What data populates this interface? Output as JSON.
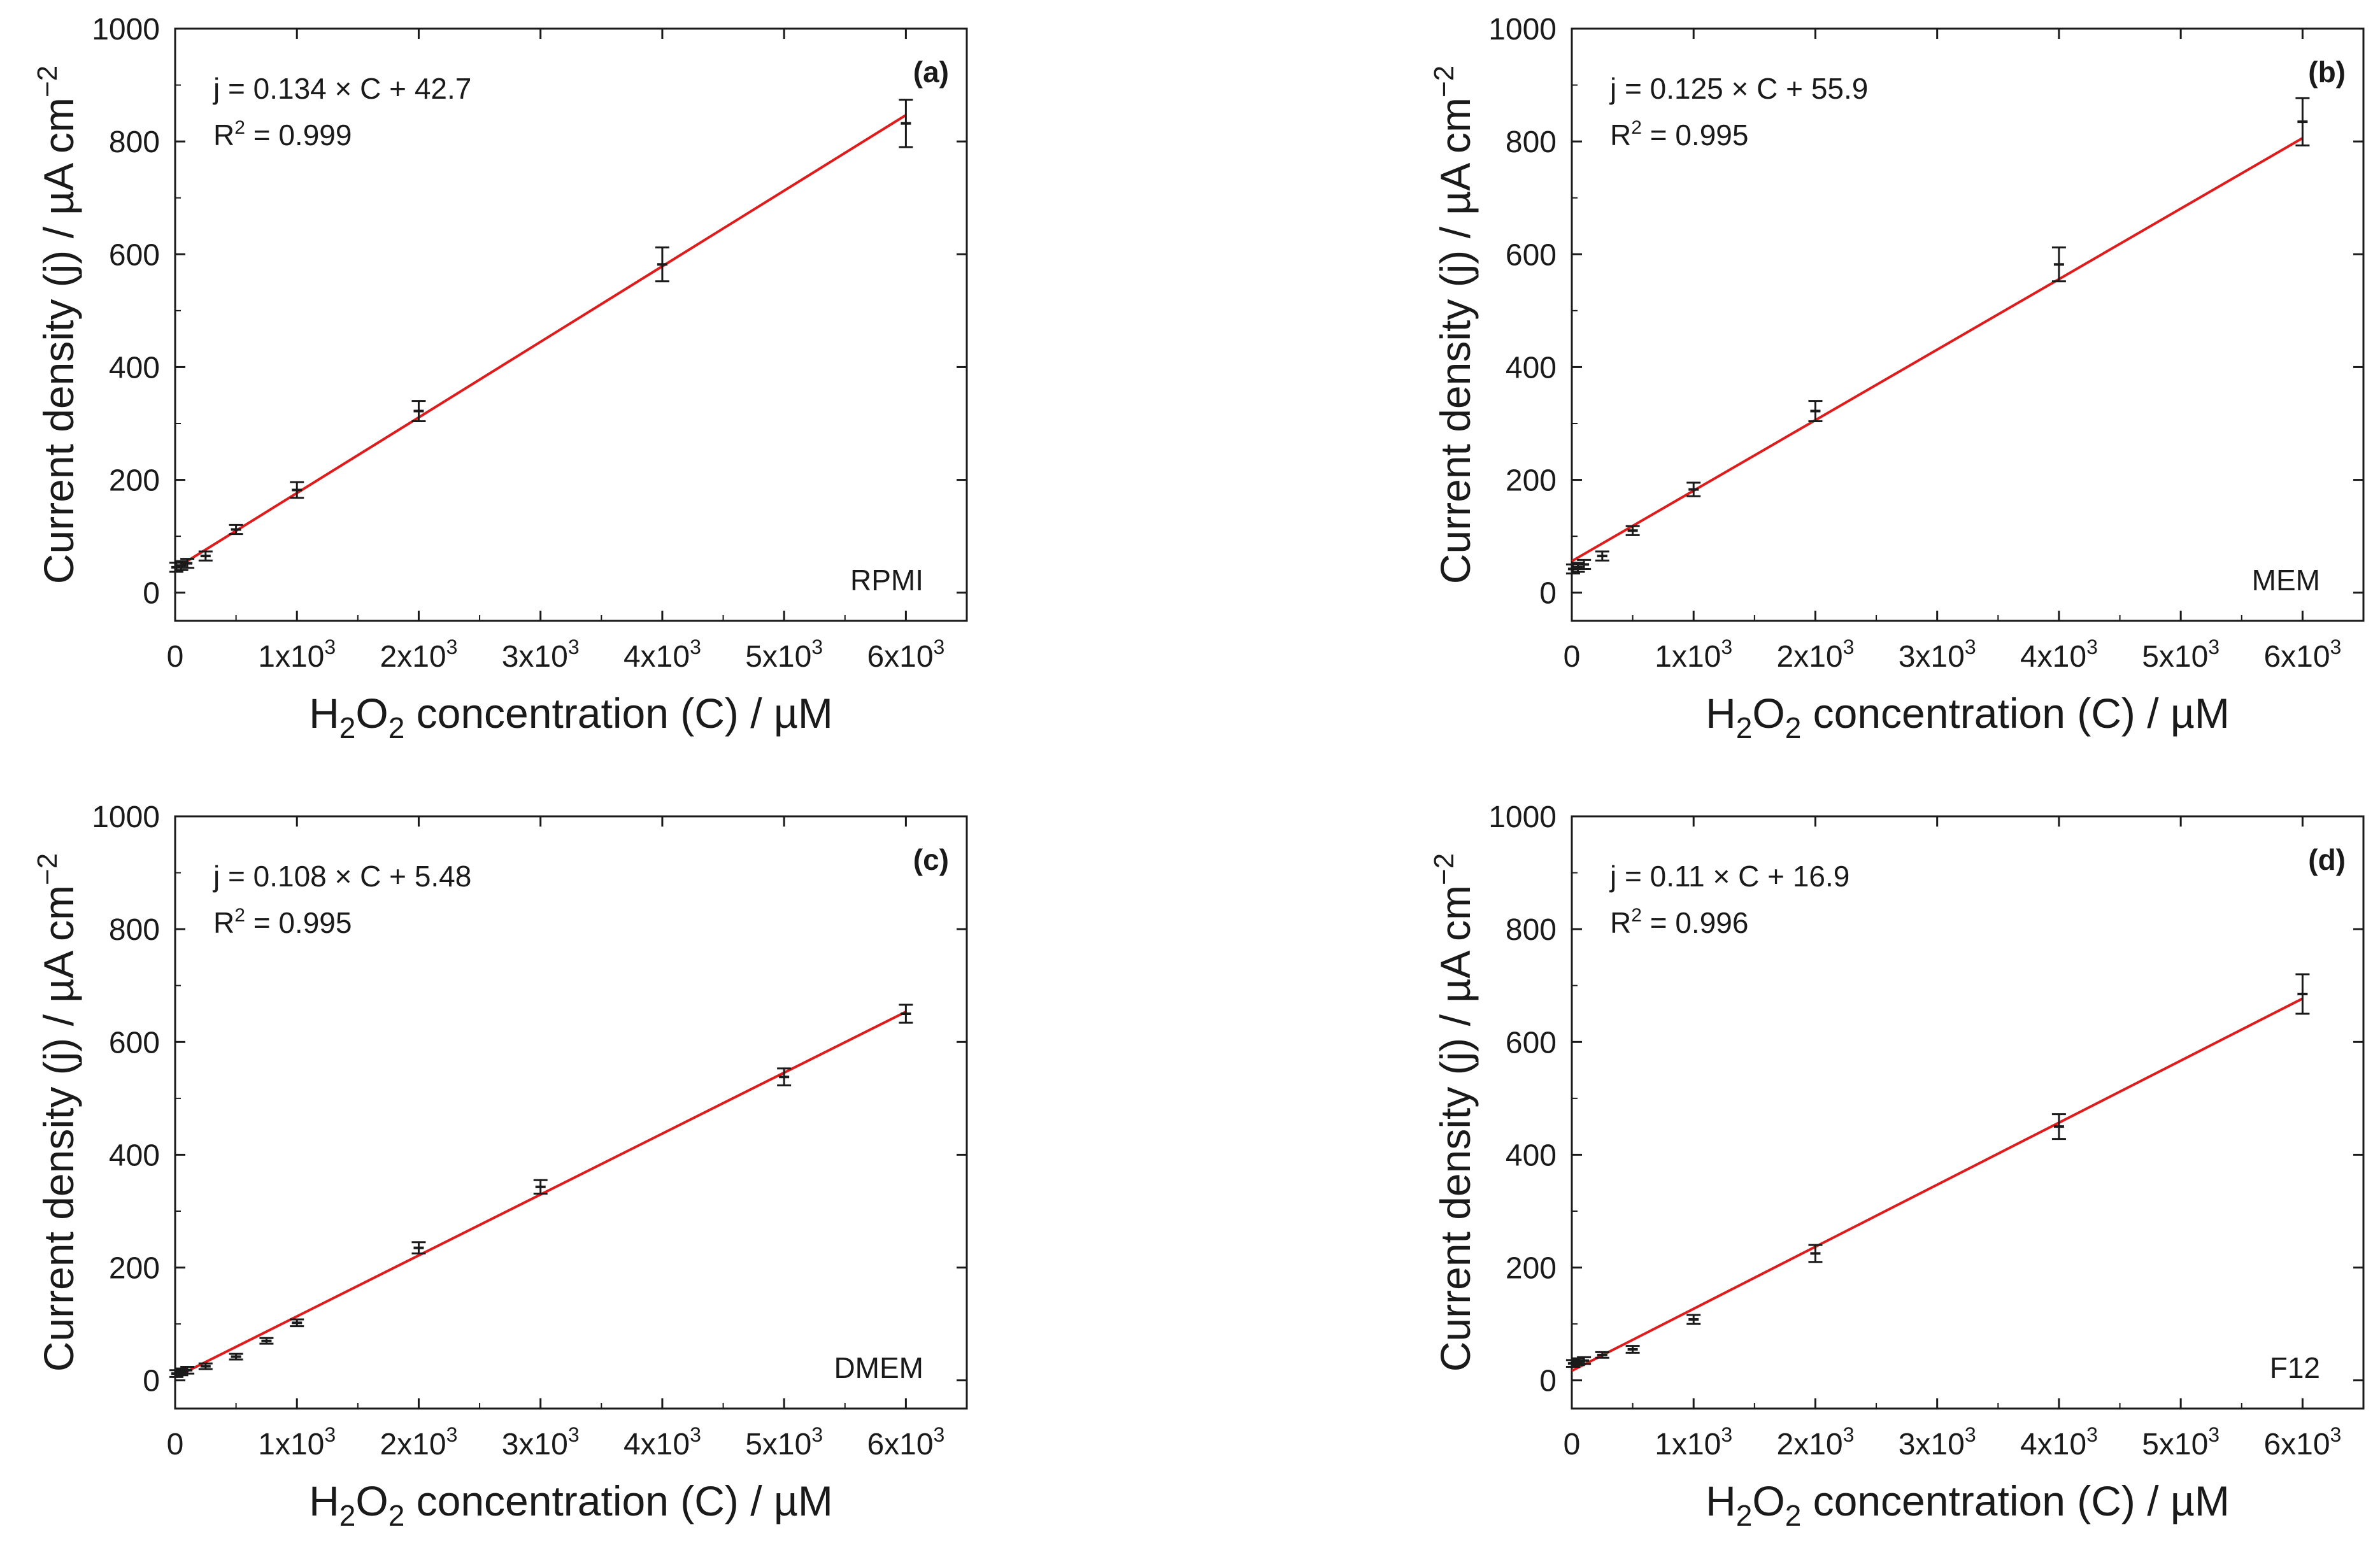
{
  "figure": {
    "colors": {
      "fit_line": "#e01b1b",
      "axes": "#1a1a1a",
      "data": "#1a1a1a",
      "background": "#ffffff"
    }
  },
  "chart_data": [
    {
      "id": "a",
      "type": "scatter",
      "panel_label": "(a)",
      "medium": "RPMI",
      "title": "",
      "equation": "j = 0.134 × C + 42.7",
      "r2_label": "R",
      "r2_exp": "2",
      "r2_value": " = 0.999",
      "xlabel": {
        "main1": "H",
        "sub1": "2",
        "main2": "O",
        "sub2": "2",
        "rest": " concentration (C) /   µM"
      },
      "ylabel": "Current density (j) / µA cm",
      "ylabel_exp": "−2",
      "xlim": [
        0,
        6500
      ],
      "ylim": [
        -50,
        1000
      ],
      "x_ticks": [
        0,
        1000,
        2000,
        3000,
        4000,
        5000,
        6000
      ],
      "x_tick_labels": [
        {
          "b": "0",
          "e": ""
        },
        {
          "b": "1x10",
          "e": "3"
        },
        {
          "b": "2x10",
          "e": "3"
        },
        {
          "b": "3x10",
          "e": "3"
        },
        {
          "b": "4x10",
          "e": "3"
        },
        {
          "b": "5x10",
          "e": "3"
        },
        {
          "b": "6x10",
          "e": "3"
        }
      ],
      "y_ticks": [
        0,
        200,
        400,
        600,
        800,
        1000
      ],
      "y_tick_labels": [
        "0",
        "200",
        "400",
        "600",
        "800",
        "1000"
      ],
      "points": [
        {
          "x": 10,
          "y": 45,
          "err": 8
        },
        {
          "x": 50,
          "y": 48,
          "err": 8
        },
        {
          "x": 100,
          "y": 52,
          "err": 8
        },
        {
          "x": 250,
          "y": 65,
          "err": 8
        },
        {
          "x": 500,
          "y": 112,
          "err": 8
        },
        {
          "x": 1000,
          "y": 182,
          "err": 14
        },
        {
          "x": 2000,
          "y": 322,
          "err": 18
        },
        {
          "x": 4000,
          "y": 582,
          "err": 30
        },
        {
          "x": 6000,
          "y": 832,
          "err": 42
        }
      ],
      "fit": {
        "slope": 0.134,
        "intercept": 42.7,
        "x_range": [
          0,
          6000
        ]
      }
    },
    {
      "id": "b",
      "type": "scatter",
      "panel_label": "(b)",
      "medium": "MEM",
      "title": "",
      "equation": "j = 0.125 × C + 55.9",
      "r2_label": "R",
      "r2_exp": "2",
      "r2_value": " = 0.995",
      "xlabel": {
        "main1": "H",
        "sub1": "2",
        "main2": "O",
        "sub2": "2",
        "rest": " concentration (C) /   µM"
      },
      "ylabel": "Current density (j) / µA cm",
      "ylabel_exp": "−2",
      "xlim": [
        0,
        6500
      ],
      "ylim": [
        -50,
        1000
      ],
      "x_ticks": [
        0,
        1000,
        2000,
        3000,
        4000,
        5000,
        6000
      ],
      "x_tick_labels": [
        {
          "b": "0",
          "e": ""
        },
        {
          "b": "1x10",
          "e": "3"
        },
        {
          "b": "2x10",
          "e": "3"
        },
        {
          "b": "3x10",
          "e": "3"
        },
        {
          "b": "4x10",
          "e": "3"
        },
        {
          "b": "5x10",
          "e": "3"
        },
        {
          "b": "6x10",
          "e": "3"
        }
      ],
      "y_ticks": [
        0,
        200,
        400,
        600,
        800,
        1000
      ],
      "y_tick_labels": [
        "0",
        "200",
        "400",
        "600",
        "800",
        "1000"
      ],
      "points": [
        {
          "x": 10,
          "y": 42,
          "err": 8
        },
        {
          "x": 50,
          "y": 45,
          "err": 8
        },
        {
          "x": 100,
          "y": 50,
          "err": 8
        },
        {
          "x": 250,
          "y": 65,
          "err": 8
        },
        {
          "x": 500,
          "y": 110,
          "err": 8
        },
        {
          "x": 1000,
          "y": 183,
          "err": 12
        },
        {
          "x": 2000,
          "y": 322,
          "err": 18
        },
        {
          "x": 4000,
          "y": 582,
          "err": 30
        },
        {
          "x": 6000,
          "y": 835,
          "err": 42
        }
      ],
      "fit": {
        "slope": 0.125,
        "intercept": 55.9,
        "x_range": [
          0,
          6000
        ]
      }
    },
    {
      "id": "c",
      "type": "scatter",
      "panel_label": "(c)",
      "medium": "DMEM",
      "title": "",
      "equation": "j = 0.108 × C + 5.48",
      "r2_label": "R",
      "r2_exp": "2",
      "r2_value": " = 0.995",
      "xlabel": {
        "main1": "H",
        "sub1": "2",
        "main2": "O",
        "sub2": "2",
        "rest": " concentration (C) / µM"
      },
      "ylabel": "Current density (j) / µA cm",
      "ylabel_exp": "−2",
      "xlim": [
        0,
        6500
      ],
      "ylim": [
        -50,
        1000
      ],
      "x_ticks": [
        0,
        1000,
        2000,
        3000,
        4000,
        5000,
        6000
      ],
      "x_tick_labels": [
        {
          "b": "0",
          "e": ""
        },
        {
          "b": "1x10",
          "e": "3"
        },
        {
          "b": "2x10",
          "e": "3"
        },
        {
          "b": "3x10",
          "e": "3"
        },
        {
          "b": "4x10",
          "e": "3"
        },
        {
          "b": "5x10",
          "e": "3"
        },
        {
          "b": "6x10",
          "e": "3"
        }
      ],
      "y_ticks": [
        0,
        200,
        400,
        600,
        800,
        1000
      ],
      "y_tick_labels": [
        "0",
        "200",
        "400",
        "600",
        "800",
        "1000"
      ],
      "points": [
        {
          "x": 10,
          "y": 12,
          "err": 6
        },
        {
          "x": 50,
          "y": 15,
          "err": 6
        },
        {
          "x": 100,
          "y": 18,
          "err": 6
        },
        {
          "x": 250,
          "y": 25,
          "err": 5
        },
        {
          "x": 500,
          "y": 42,
          "err": 5
        },
        {
          "x": 750,
          "y": 70,
          "err": 5
        },
        {
          "x": 1000,
          "y": 102,
          "err": 6
        },
        {
          "x": 2000,
          "y": 235,
          "err": 10
        },
        {
          "x": 3000,
          "y": 343,
          "err": 12
        },
        {
          "x": 5000,
          "y": 538,
          "err": 15
        },
        {
          "x": 6000,
          "y": 650,
          "err": 16
        }
      ],
      "fit": {
        "slope": 0.108,
        "intercept": 5.48,
        "x_range": [
          0,
          6000
        ]
      }
    },
    {
      "id": "d",
      "type": "scatter",
      "panel_label": "(d)",
      "medium": "F12",
      "title": "",
      "equation": "j = 0.11 × C + 16.9",
      "r2_label": "R",
      "r2_exp": "2",
      "r2_value": " = 0.996",
      "xlabel": {
        "main1": "H",
        "sub1": "2",
        "main2": "O",
        "sub2": "2",
        "rest": " concentration (C) / µM"
      },
      "ylabel": "Current density (j) / µA cm",
      "ylabel_exp": "−2",
      "xlim": [
        0,
        6500
      ],
      "ylim": [
        -50,
        1000
      ],
      "x_ticks": [
        0,
        1000,
        2000,
        3000,
        4000,
        5000,
        6000
      ],
      "x_tick_labels": [
        {
          "b": "0",
          "e": ""
        },
        {
          "b": "1x10",
          "e": "3"
        },
        {
          "b": "2x10",
          "e": "3"
        },
        {
          "b": "3x10",
          "e": "3"
        },
        {
          "b": "4x10",
          "e": "3"
        },
        {
          "b": "5x10",
          "e": "3"
        },
        {
          "b": "6x10",
          "e": "3"
        }
      ],
      "y_ticks": [
        0,
        200,
        400,
        600,
        800,
        1000
      ],
      "y_tick_labels": [
        "0",
        "200",
        "400",
        "600",
        "800",
        "1000"
      ],
      "points": [
        {
          "x": 10,
          "y": 30,
          "err": 6
        },
        {
          "x": 50,
          "y": 33,
          "err": 6
        },
        {
          "x": 100,
          "y": 35,
          "err": 6
        },
        {
          "x": 250,
          "y": 45,
          "err": 5
        },
        {
          "x": 500,
          "y": 55,
          "err": 6
        },
        {
          "x": 1000,
          "y": 108,
          "err": 8
        },
        {
          "x": 2000,
          "y": 225,
          "err": 15
        },
        {
          "x": 4000,
          "y": 450,
          "err": 22
        },
        {
          "x": 6000,
          "y": 685,
          "err": 35
        }
      ],
      "fit": {
        "slope": 0.11,
        "intercept": 16.9,
        "x_range": [
          0,
          6000
        ]
      }
    }
  ]
}
